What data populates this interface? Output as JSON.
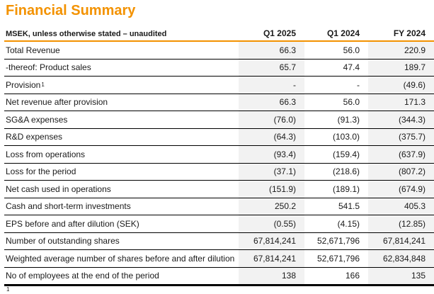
{
  "title": "Financial Summary",
  "colors": {
    "accent_orange": "#F39200",
    "shaded_column": "#f2f2f2",
    "rule_black": "#000000"
  },
  "table": {
    "header": {
      "label": "MSEK, unless otherwise stated – unaudited",
      "columns": [
        "Q1 2025",
        "Q1 2024",
        "FY 2024"
      ]
    },
    "rows": [
      {
        "label": "Total Revenue",
        "values": [
          "66.3",
          "56.0",
          "220.9"
        ]
      },
      {
        "label": "-thereof: Product sales",
        "values": [
          "65.7",
          "47.4",
          "189.7"
        ]
      },
      {
        "label": "Provision",
        "sup": "1",
        "values": [
          "-",
          "-",
          "(49.6)"
        ]
      },
      {
        "label": "Net revenue after provision",
        "values": [
          "66.3",
          "56.0",
          "171.3"
        ]
      },
      {
        "label": "SG&A expenses",
        "values": [
          "(76.0)",
          "(91.3)",
          "(344.3)"
        ]
      },
      {
        "label": "R&D expenses",
        "values": [
          "(64.3)",
          "(103.0)",
          "(375.7)"
        ]
      },
      {
        "label": "Loss from operations",
        "values": [
          "(93.4)",
          "(159.4)",
          "(637.9)"
        ]
      },
      {
        "label": "Loss for the period",
        "values": [
          "(37.1)",
          "(218.6)",
          "(807.2)"
        ]
      },
      {
        "label": "Net cash used in operations",
        "values": [
          "(151.9)",
          "(189.1)",
          "(674.9)"
        ]
      },
      {
        "label": "Cash and short-term investments",
        "values": [
          "250.2",
          "541.5",
          "405.3"
        ]
      },
      {
        "label": "EPS before and after dilution (SEK)",
        "values": [
          "(0.55)",
          "(4.15)",
          "(12.85)"
        ]
      },
      {
        "label": "Number of outstanding shares",
        "values": [
          "67,814,241",
          "52,671,796",
          "67,814,241"
        ]
      },
      {
        "label": "Weighted average number of shares before and after dilution",
        "values": [
          "67,814,241",
          "52,671,796",
          "62,834,848"
        ]
      },
      {
        "label": "No of employees at the end of the period",
        "values": [
          "138",
          "166",
          "135"
        ]
      }
    ],
    "footnote_marker": "1"
  }
}
